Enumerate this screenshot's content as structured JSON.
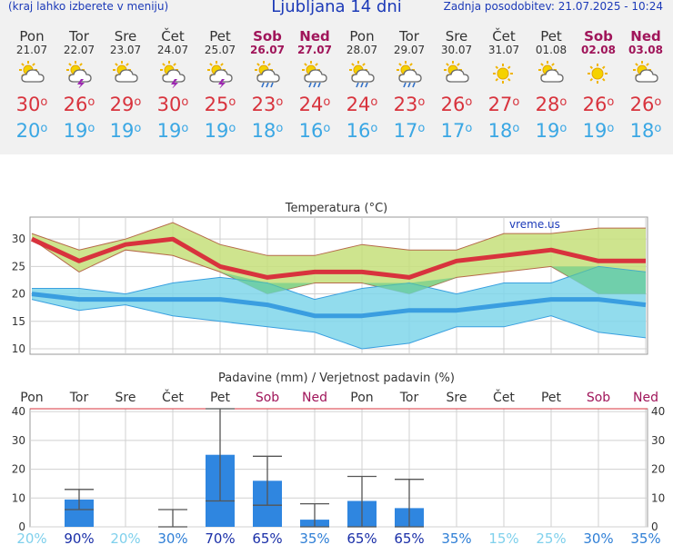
{
  "header": {
    "hint": "(kraj lahko izberete v meniju)",
    "title": "Ljubljana 14 dni",
    "updated": "Zadnja posodobitev: 21.07.2025 - 10:24"
  },
  "days": [
    {
      "name": "Pon",
      "date": "21.07",
      "weekend": false,
      "icon": "partly-cloudy-icon",
      "tmax": "30",
      "tmin": "20",
      "precip_prob": "20%"
    },
    {
      "name": "Tor",
      "date": "22.07",
      "weekend": false,
      "icon": "thunderstorm-icon",
      "tmax": "26",
      "tmin": "19",
      "precip_prob": "90%"
    },
    {
      "name": "Sre",
      "date": "23.07",
      "weekend": false,
      "icon": "partly-cloudy-icon",
      "tmax": "29",
      "tmin": "19",
      "precip_prob": "20%"
    },
    {
      "name": "Čet",
      "date": "24.07",
      "weekend": false,
      "icon": "thunderstorm-icon",
      "tmax": "30",
      "tmin": "19",
      "precip_prob": "30%"
    },
    {
      "name": "Pet",
      "date": "25.07",
      "weekend": false,
      "icon": "thunderstorm-icon",
      "tmax": "25",
      "tmin": "19",
      "precip_prob": "70%"
    },
    {
      "name": "Sob",
      "date": "26.07",
      "weekend": true,
      "icon": "rain-icon",
      "tmax": "23",
      "tmin": "18",
      "precip_prob": "65%"
    },
    {
      "name": "Ned",
      "date": "27.07",
      "weekend": true,
      "icon": "rain-icon",
      "tmax": "24",
      "tmin": "16",
      "precip_prob": "35%"
    },
    {
      "name": "Pon",
      "date": "28.07",
      "weekend": false,
      "icon": "rain-icon",
      "tmax": "24",
      "tmin": "16",
      "precip_prob": "65%"
    },
    {
      "name": "Tor",
      "date": "29.07",
      "weekend": false,
      "icon": "rain-icon",
      "tmax": "23",
      "tmin": "17",
      "precip_prob": "65%"
    },
    {
      "name": "Sre",
      "date": "30.07",
      "weekend": false,
      "icon": "partly-cloudy-icon",
      "tmax": "26",
      "tmin": "17",
      "precip_prob": "35%"
    },
    {
      "name": "Čet",
      "date": "31.07",
      "weekend": false,
      "icon": "sun-icon",
      "tmax": "27",
      "tmin": "18",
      "precip_prob": "15%"
    },
    {
      "name": "Pet",
      "date": "01.08",
      "weekend": false,
      "icon": "partly-cloudy-icon",
      "tmax": "28",
      "tmin": "19",
      "precip_prob": "25%"
    },
    {
      "name": "Sob",
      "date": "02.08",
      "weekend": true,
      "icon": "sun-icon",
      "tmax": "26",
      "tmin": "19",
      "precip_prob": "30%"
    },
    {
      "name": "Ned",
      "date": "03.08",
      "weekend": true,
      "icon": "partly-cloudy-icon",
      "tmax": "26",
      "tmin": "18",
      "precip_prob": "35%"
    }
  ],
  "temp_chart_title": "Temperatura (°C)",
  "watermark": "vreme.us",
  "precip_chart_title": "Padavine (mm) / Verjetnost padavin (%)",
  "colors": {
    "header_blue": "#1c3ab8",
    "weekend": "#a0155a",
    "tmax_red": "#d8333d",
    "tmin_blue": "#3aa7e4",
    "bar_blue": "#2f86e0",
    "band_green": "#c6df7a",
    "band_cyan": "#7fd6ea"
  },
  "chart_data": [
    {
      "type": "line",
      "title": "Temperatura (°C)",
      "categories": [
        "Pon",
        "Tor",
        "Sre",
        "Čet",
        "Pet",
        "Sob",
        "Ned",
        "Pon",
        "Tor",
        "Sre",
        "Čet",
        "Pet",
        "Sob",
        "Ned"
      ],
      "ylim": [
        9,
        34
      ],
      "yticks": [
        10,
        15,
        20,
        25,
        30
      ],
      "grid": true,
      "series": [
        {
          "values": [
            30,
            26,
            29,
            30,
            25,
            23,
            24,
            24,
            23,
            26,
            27,
            28,
            26,
            26
          ]
        },
        {
          "values": [
            31,
            28,
            30,
            33,
            29,
            27,
            27,
            29,
            28,
            28,
            31,
            31,
            32,
            32
          ]
        },
        {
          "values": [
            30,
            24,
            28,
            27,
            24,
            20,
            22,
            22,
            20,
            23,
            24,
            25,
            20,
            20
          ]
        },
        {
          "values": [
            20,
            19,
            19,
            19,
            19,
            18,
            16,
            16,
            17,
            17,
            18,
            19,
            19,
            18
          ]
        },
        {
          "values": [
            21,
            21,
            20,
            22,
            23,
            22,
            19,
            21,
            22,
            20,
            22,
            22,
            25,
            24
          ]
        },
        {
          "values": [
            19,
            17,
            18,
            16,
            15,
            14,
            13,
            10,
            11,
            14,
            14,
            16,
            13,
            12
          ]
        }
      ]
    },
    {
      "type": "bar",
      "title": "Padavine (mm) / Verjetnost padavin (%)",
      "categories": [
        "Pon",
        "Tor",
        "Sre",
        "Čet",
        "Pet",
        "Sob",
        "Ned",
        "Pon",
        "Tor",
        "Sre",
        "Čet",
        "Pet",
        "Sob",
        "Ned"
      ],
      "ylim": [
        0,
        41
      ],
      "yticks": [
        0,
        10,
        20,
        30,
        40
      ],
      "values": [
        0,
        9.5,
        0,
        0,
        25,
        16,
        2.5,
        9,
        6.5,
        0,
        0,
        0,
        0,
        0
      ],
      "error_low": [
        null,
        6,
        null,
        0,
        9,
        7.5,
        0,
        0,
        0,
        null,
        null,
        null,
        null,
        null
      ],
      "error_high": [
        null,
        13,
        null,
        6,
        41,
        24.5,
        8,
        17.5,
        16.5,
        null,
        null,
        null,
        null,
        null
      ],
      "probabilities": [
        "20%",
        "90%",
        "20%",
        "30%",
        "70%",
        "65%",
        "35%",
        "65%",
        "65%",
        "35%",
        "15%",
        "25%",
        "30%",
        "35%"
      ]
    }
  ]
}
